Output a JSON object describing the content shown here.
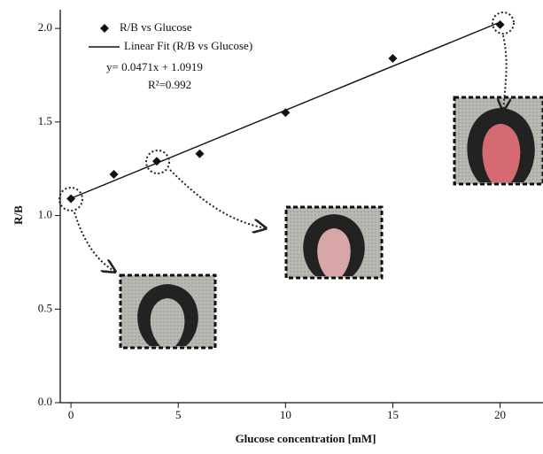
{
  "chart_data": {
    "type": "scatter",
    "x_label": "Glucose concentration [mM]",
    "y_label": "R/B",
    "xlim": [
      -0.5,
      22
    ],
    "ylim": [
      0,
      2.1
    ],
    "xticks": [
      0,
      5,
      10,
      15,
      20
    ],
    "yticks": [
      {
        "value": 0,
        "label": "0.0"
      },
      0.5,
      {
        "value": 1,
        "label": "1.0"
      },
      1.5,
      {
        "value": 2,
        "label": "2.0"
      }
    ],
    "series": [
      {
        "name": "R/B vs Glucose",
        "color": "#111111",
        "x": [
          0,
          2,
          4,
          6,
          10,
          15,
          20
        ],
        "values": [
          1.09,
          1.22,
          1.29,
          1.33,
          1.55,
          1.84,
          2.02
        ]
      }
    ],
    "fit": {
      "name": "Linear Fit (R/B vs Glucose)",
      "color": "#111111",
      "slope": 0.0471,
      "intercept": 1.0919,
      "x_range": [
        0,
        20
      ],
      "equation": "y= 0.0471x + 1.0919",
      "r2_label": "R²=0.992"
    }
  }
}
